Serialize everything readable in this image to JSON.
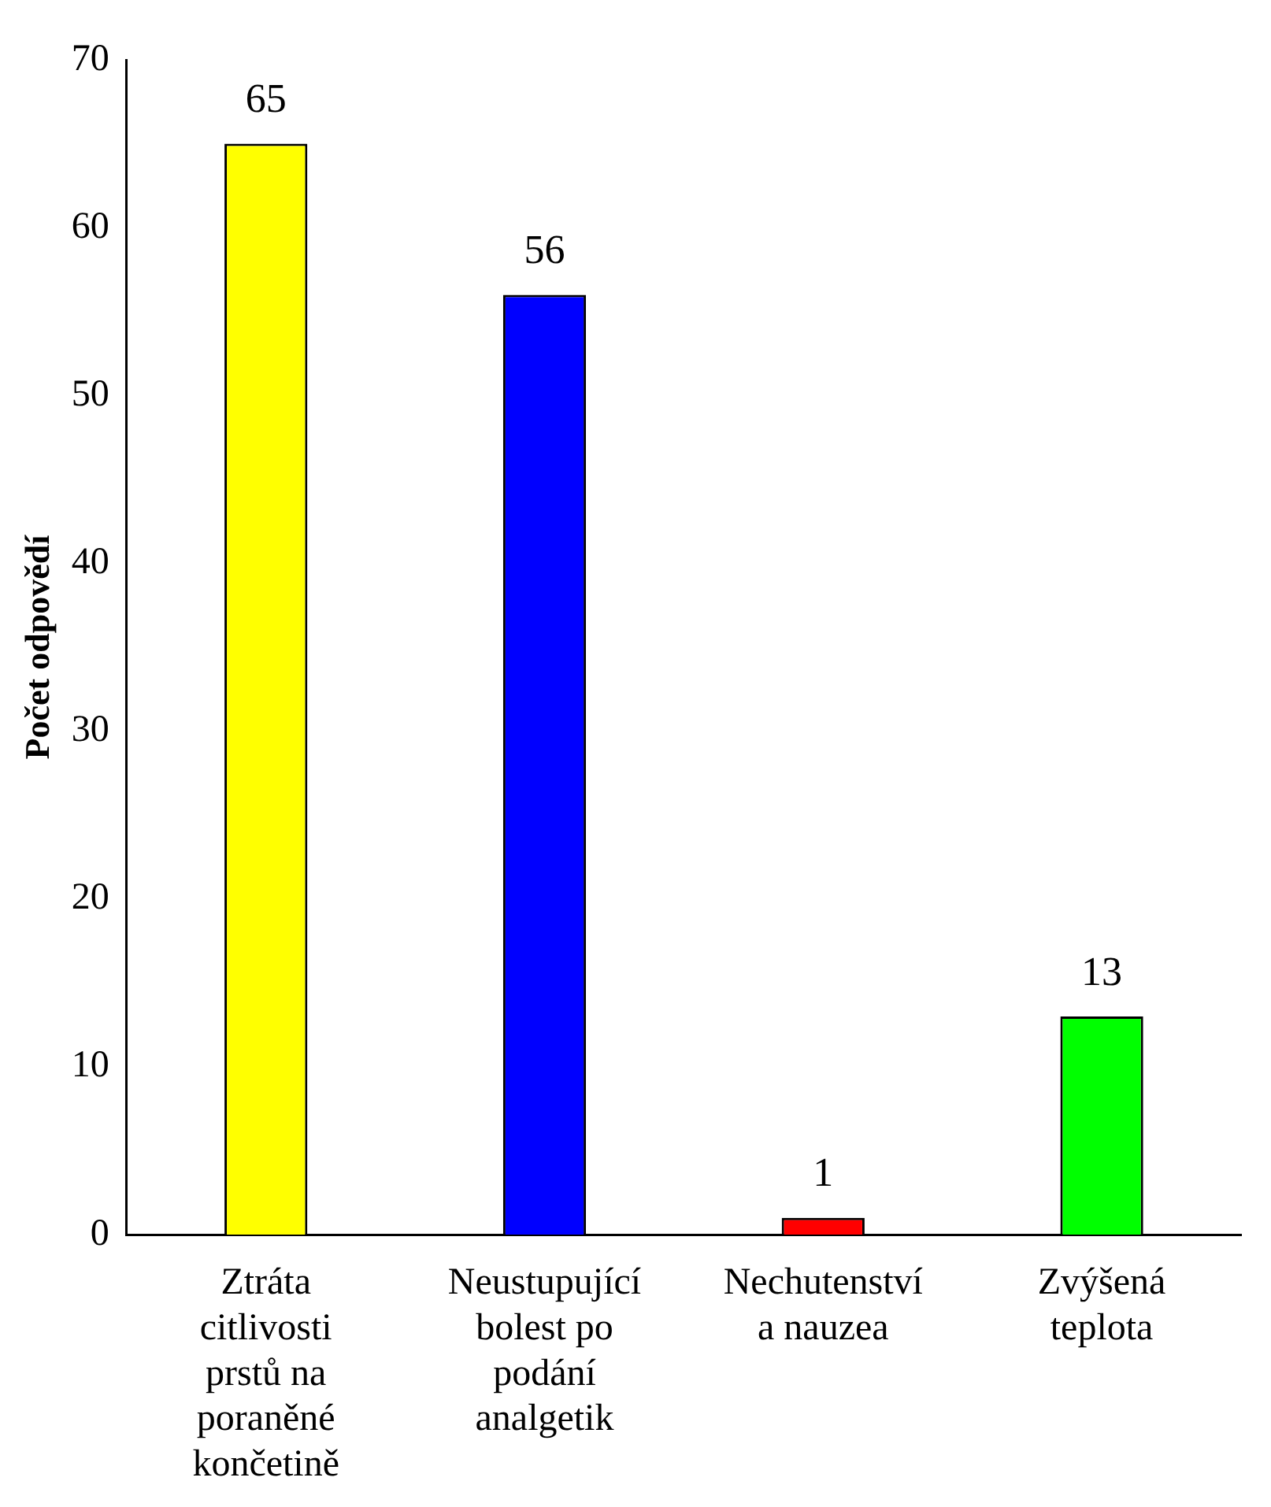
{
  "chart_data": {
    "type": "bar",
    "ylabel": "Počet odpovědí",
    "categories": [
      "Ztráta citlivosti prstů na poraněné končetině",
      "Neustupující bolest po podání analgetik",
      "Nechutenství a nauzea",
      "Zvýšená teplota"
    ],
    "values": [
      65,
      56,
      1,
      13
    ],
    "colors": [
      "#ffff00",
      "#0000ff",
      "#ff0000",
      "#00ff00"
    ],
    "ylim": [
      0,
      70
    ],
    "yticks": [
      0,
      10,
      20,
      30,
      40,
      50,
      60,
      70
    ],
    "grid": false,
    "legend": false,
    "data_labels": true
  }
}
